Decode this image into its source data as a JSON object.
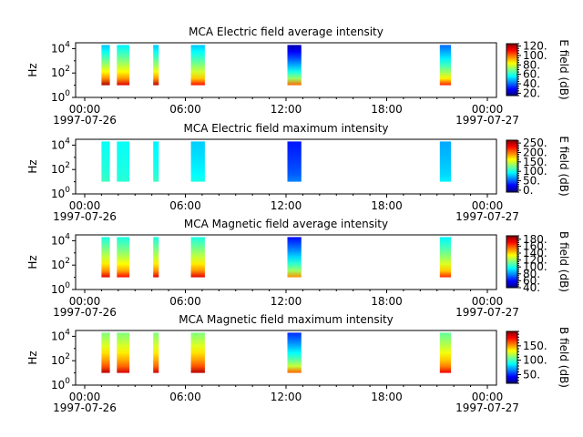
{
  "chart_data": [
    {
      "type": "heatmap",
      "title": "MCA  Electric field average intensity",
      "ylabel": "Hz",
      "colorbar_label": "E field (dB)",
      "colorbar_range": [
        15,
        125
      ],
      "colorbar_ticks": [
        "20.",
        "40.",
        "60.",
        "80.",
        "100.",
        "120."
      ],
      "colorbar_minor_step": 5,
      "xlim": [
        "1997-07-26 00:00",
        "1997-07-27 00:00"
      ],
      "ylim": [
        1,
        30000
      ],
      "yscale": "log",
      "x_tick_labels": [
        "00:00",
        "06:00",
        "12:00",
        "18:00",
        "00:00"
      ],
      "x_date_labels": [
        "1997-07-26",
        "",
        "",
        "",
        "1997-07-27"
      ],
      "y_tick_labels": [
        "10^0",
        "10^2",
        "10^4"
      ],
      "grid": false,
      "data_intervals_utc": [
        [
          "01:00",
          "01:30"
        ],
        [
          "01:55",
          "02:40"
        ],
        [
          "04:05",
          "04:25"
        ],
        [
          "06:20",
          "07:10"
        ],
        [
          "12:05",
          "12:55"
        ],
        [
          "21:10",
          "21:50"
        ]
      ],
      "low_frequency_values_db": [
        120,
        115,
        118,
        110,
        100,
        108
      ],
      "high_frequency_values_db": [
        50,
        55,
        50,
        50,
        20,
        40
      ]
    },
    {
      "type": "heatmap",
      "title": "MCA  Electric field maximum intensity",
      "ylabel": "Hz",
      "colorbar_label": "E field (dB)",
      "colorbar_range": [
        -10,
        265
      ],
      "colorbar_ticks": [
        "0.",
        "50.",
        "100.",
        "150.",
        "200.",
        "250."
      ],
      "colorbar_minor_step": 10,
      "xlim": [
        "1997-07-26 00:00",
        "1997-07-27 00:00"
      ],
      "ylim": [
        1,
        30000
      ],
      "yscale": "log",
      "x_tick_labels": [
        "00:00",
        "06:00",
        "12:00",
        "18:00",
        "00:00"
      ],
      "x_date_labels": [
        "1997-07-26",
        "",
        "",
        "",
        "1997-07-27"
      ],
      "y_tick_labels": [
        "10^0",
        "10^2",
        "10^4"
      ],
      "grid": false,
      "data_intervals_utc": [
        [
          "01:00",
          "01:30"
        ],
        [
          "01:55",
          "02:40"
        ],
        [
          "04:05",
          "04:25"
        ],
        [
          "06:20",
          "07:10"
        ],
        [
          "12:05",
          "12:55"
        ],
        [
          "21:10",
          "21:50"
        ]
      ],
      "low_frequency_values_db": [
        110,
        105,
        110,
        100,
        60,
        90
      ],
      "high_frequency_values_db": [
        95,
        95,
        90,
        80,
        30,
        70
      ]
    },
    {
      "type": "heatmap",
      "title": "MCA  Magnetic field average intensity",
      "ylabel": "Hz",
      "colorbar_label": "B field (dB)",
      "colorbar_range": [
        40,
        190
      ],
      "colorbar_ticks": [
        "40.",
        "60.",
        "80.",
        "100.",
        "120.",
        "140.",
        "160.",
        "180."
      ],
      "colorbar_minor_step": 5,
      "xlim": [
        "1997-07-26 00:00",
        "1997-07-27 00:00"
      ],
      "ylim": [
        1,
        30000
      ],
      "yscale": "log",
      "x_tick_labels": [
        "00:00",
        "06:00",
        "12:00",
        "18:00",
        "00:00"
      ],
      "x_date_labels": [
        "1997-07-26",
        "",
        "",
        "",
        "1997-07-27"
      ],
      "y_tick_labels": [
        "10^0",
        "10^2",
        "10^4"
      ],
      "grid": false,
      "data_intervals_utc": [
        [
          "01:00",
          "01:30"
        ],
        [
          "01:55",
          "02:40"
        ],
        [
          "04:05",
          "04:25"
        ],
        [
          "06:20",
          "07:10"
        ],
        [
          "12:05",
          "12:55"
        ],
        [
          "21:10",
          "21:50"
        ]
      ],
      "low_frequency_values_db": [
        175,
        170,
        175,
        175,
        150,
        165
      ],
      "high_frequency_values_db": [
        100,
        100,
        100,
        100,
        60,
        95
      ]
    },
    {
      "type": "heatmap",
      "title": "MCA  Magnetic field maximum intensity",
      "ylabel": "Hz",
      "colorbar_label": "B field (dB)",
      "colorbar_range": [
        20,
        200
      ],
      "colorbar_ticks": [
        "50.",
        "100.",
        "150."
      ],
      "colorbar_minor_step": 10,
      "xlim": [
        "1997-07-26 00:00",
        "1997-07-27 00:00"
      ],
      "ylim": [
        1,
        30000
      ],
      "yscale": "log",
      "x_tick_labels": [
        "00:00",
        "06:00",
        "12:00",
        "18:00",
        "00:00"
      ],
      "x_date_labels": [
        "1997-07-26",
        "",
        "",
        "",
        "1997-07-27"
      ],
      "y_tick_labels": [
        "10^0",
        "10^2",
        "10^4"
      ],
      "grid": false,
      "data_intervals_utc": [
        [
          "01:00",
          "01:30"
        ],
        [
          "01:55",
          "02:40"
        ],
        [
          "04:05",
          "04:25"
        ],
        [
          "06:20",
          "07:10"
        ],
        [
          "12:05",
          "12:55"
        ],
        [
          "21:10",
          "21:50"
        ]
      ],
      "low_frequency_values_db": [
        190,
        185,
        185,
        190,
        160,
        180
      ],
      "high_frequency_values_db": [
        110,
        110,
        110,
        110,
        50,
        105
      ]
    }
  ]
}
